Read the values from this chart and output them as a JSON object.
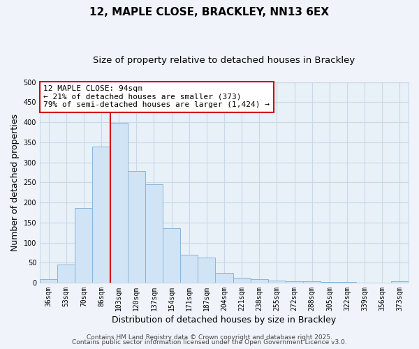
{
  "title": "12, MAPLE CLOSE, BRACKLEY, NN13 6EX",
  "subtitle": "Size of property relative to detached houses in Brackley",
  "xlabel": "Distribution of detached houses by size in Brackley",
  "ylabel": "Number of detached properties",
  "categories": [
    "36sqm",
    "53sqm",
    "70sqm",
    "86sqm",
    "103sqm",
    "120sqm",
    "137sqm",
    "154sqm",
    "171sqm",
    "187sqm",
    "204sqm",
    "221sqm",
    "238sqm",
    "255sqm",
    "272sqm",
    "288sqm",
    "305sqm",
    "322sqm",
    "339sqm",
    "356sqm",
    "373sqm"
  ],
  "values": [
    8,
    46,
    187,
    340,
    398,
    278,
    246,
    135,
    70,
    62,
    25,
    12,
    8,
    5,
    4,
    3,
    2,
    1,
    0,
    0,
    3
  ],
  "bar_color": "#d0e4f5",
  "bar_edge_color": "#8ab4d8",
  "vline_color": "#cc0000",
  "annotation_text": "12 MAPLE CLOSE: 94sqm\n← 21% of detached houses are smaller (373)\n79% of semi-detached houses are larger (1,424) →",
  "annotation_box_color": "#ffffff",
  "annotation_box_edge": "#cc0000",
  "ylim": [
    0,
    500
  ],
  "yticks": [
    0,
    50,
    100,
    150,
    200,
    250,
    300,
    350,
    400,
    450,
    500
  ],
  "grid_color": "#c8d8e8",
  "background_color": "#f0f4fa",
  "plot_background": "#e8f0f8",
  "footer_line1": "Contains HM Land Registry data © Crown copyright and database right 2025.",
  "footer_line2": "Contains public sector information licensed under the Open Government Licence v3.0.",
  "title_fontsize": 11,
  "subtitle_fontsize": 9.5,
  "axis_label_fontsize": 9,
  "tick_fontsize": 7,
  "annotation_fontsize": 8,
  "footer_fontsize": 6.5
}
